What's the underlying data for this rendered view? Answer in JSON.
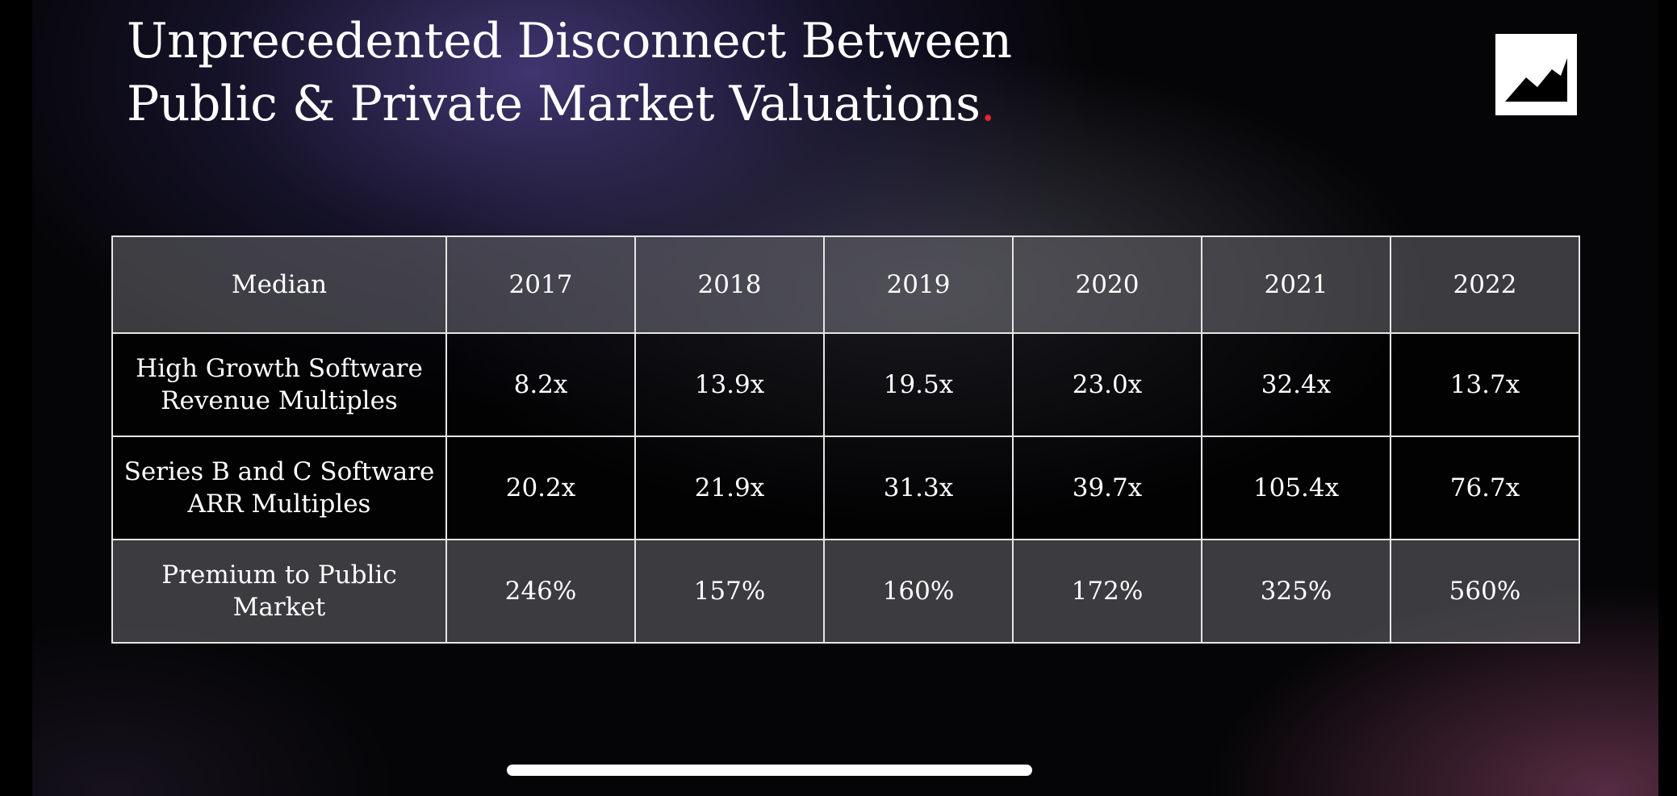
{
  "slide": {
    "title_main": "Unprecedented Disconnect Between Public & Private Market Valuations",
    "title_dot": ".",
    "title_dot_color": "#e0262f",
    "logo_icon": "mountain-icon"
  },
  "table": {
    "header": [
      "Median",
      "2017",
      "2018",
      "2019",
      "2020",
      "2021",
      "2022"
    ],
    "rows": [
      {
        "label": "High Growth Software Revenue Multiples",
        "values": [
          "8.2x",
          "13.9x",
          "19.5x",
          "23.0x",
          "32.4x",
          "13.7x"
        ]
      },
      {
        "label": "Series B and C Software ARR Multiples",
        "values": [
          "20.2x",
          "21.9x",
          "31.3x",
          "39.7x",
          "105.4x",
          "76.7x"
        ]
      },
      {
        "label": "Premium to Public Market",
        "values": [
          "246%",
          "157%",
          "160%",
          "172%",
          "325%",
          "560%"
        ]
      }
    ]
  }
}
